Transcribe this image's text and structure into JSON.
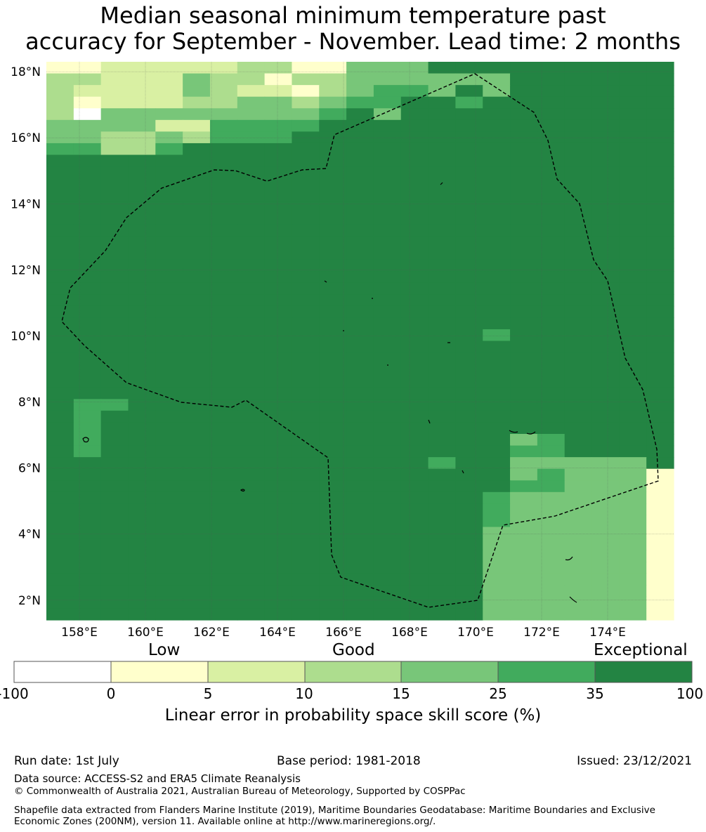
{
  "title": {
    "line1": "Median seasonal minimum temperature past",
    "line2": "accuracy for September - November. Lead time: 2 months"
  },
  "map": {
    "lat_labels": [
      "18°N",
      "16°N",
      "14°N",
      "12°N",
      "10°N",
      "8°N",
      "6°N",
      "4°N",
      "2°N"
    ],
    "lon_labels": [
      "158°E",
      "160°E",
      "162°E",
      "164°E",
      "166°E",
      "168°E",
      "170°E",
      "172°E",
      "174°E"
    ],
    "lat_range": [
      1.4,
      18.3
    ],
    "lon_range": [
      157.0,
      176.0
    ],
    "legend_colors": {
      "c0": "#ffffff",
      "c1": "#ffffcc",
      "c2": "#d9f0a3",
      "c3": "#addd8e",
      "c4": "#78c679",
      "c5": "#41ab5d",
      "c6": "#238443"
    },
    "grid_rows": [
      "11222223311444666666666",
      "33222433133444444666666",
      "32222432213455464666666",
      "31222334434556656666666",
      "30444444445646666666666",
      "44442255556666666666666",
      "44334355566666666666666",
      "55335666666666666666666",
      "66666666666666666666666",
      "66666666666666666666666",
      "66666666666666666666666",
      "66666666666666666666666",
      "66666666666666666666666",
      "66666666666666666666666",
      "66666666666666666666666",
      "66666666666666666666666",
      "66666666666666666666666",
      "66666666666666666666666",
      "66666666666666666666666",
      "66666666666666666666666",
      "66666666666666666666666",
      "66666666666666666666666",
      "66666666666666666666666",
      "66666666666666665666666",
      "66666666666666666666666",
      "66666666666666666666666",
      "66666666666666666666666",
      "66666666666666666666666",
      "66666666666666666666666",
      "65566666666666666666666",
      "65666666666666666666666",
      "65666666666666666666666",
      "65666666666666666456666",
      "65666666666666666556666",
      "66666666666666566444446",
      "66666666666666666454441",
      "66666666666666666554441",
      "66666666666666665444441",
      "66666666666666665444441",
      "66666666666666665444441",
      "66666666666666664444441",
      "66666666666666664444441",
      "66666666666666664444441",
      "66666666666666664444441",
      "66666666666666664444441",
      "66666666666666664444441",
      "66666666666666664444441",
      "66666666666666664444441"
    ],
    "grid_note": ""
  },
  "colorbar": {
    "low": "Low",
    "good": "Good",
    "exceptional": "Exceptional",
    "ticks": [
      "-100",
      "0",
      "5",
      "10",
      "15",
      "25",
      "35",
      "100"
    ],
    "colors": [
      "#ffffff",
      "#ffffcc",
      "#d9f0a3",
      "#addd8e",
      "#78c679",
      "#41ab5d",
      "#238443"
    ],
    "label": "Linear error in probability space skill score (%)"
  },
  "footer": {
    "run_date": "Run date: 1st July",
    "base_period": "Base period: 1981-2018",
    "issued": "Issued: 23/12/2021",
    "data_source": "Data source: ACCESS-S2 and ERA5 Climate Reanalysis",
    "copyright": "© Commonwealth of Australia 2021, Australian Bureau of Meteorology, Supported by COSPPac",
    "shapefile": "Shapefile data extracted from Flanders Marine Institute (2019), Maritime Boundaries Geodatabase: Maritime Boundaries and Exclusive Economic Zones (200NM), version 11. Available online at http://www.marineregions.org/."
  }
}
